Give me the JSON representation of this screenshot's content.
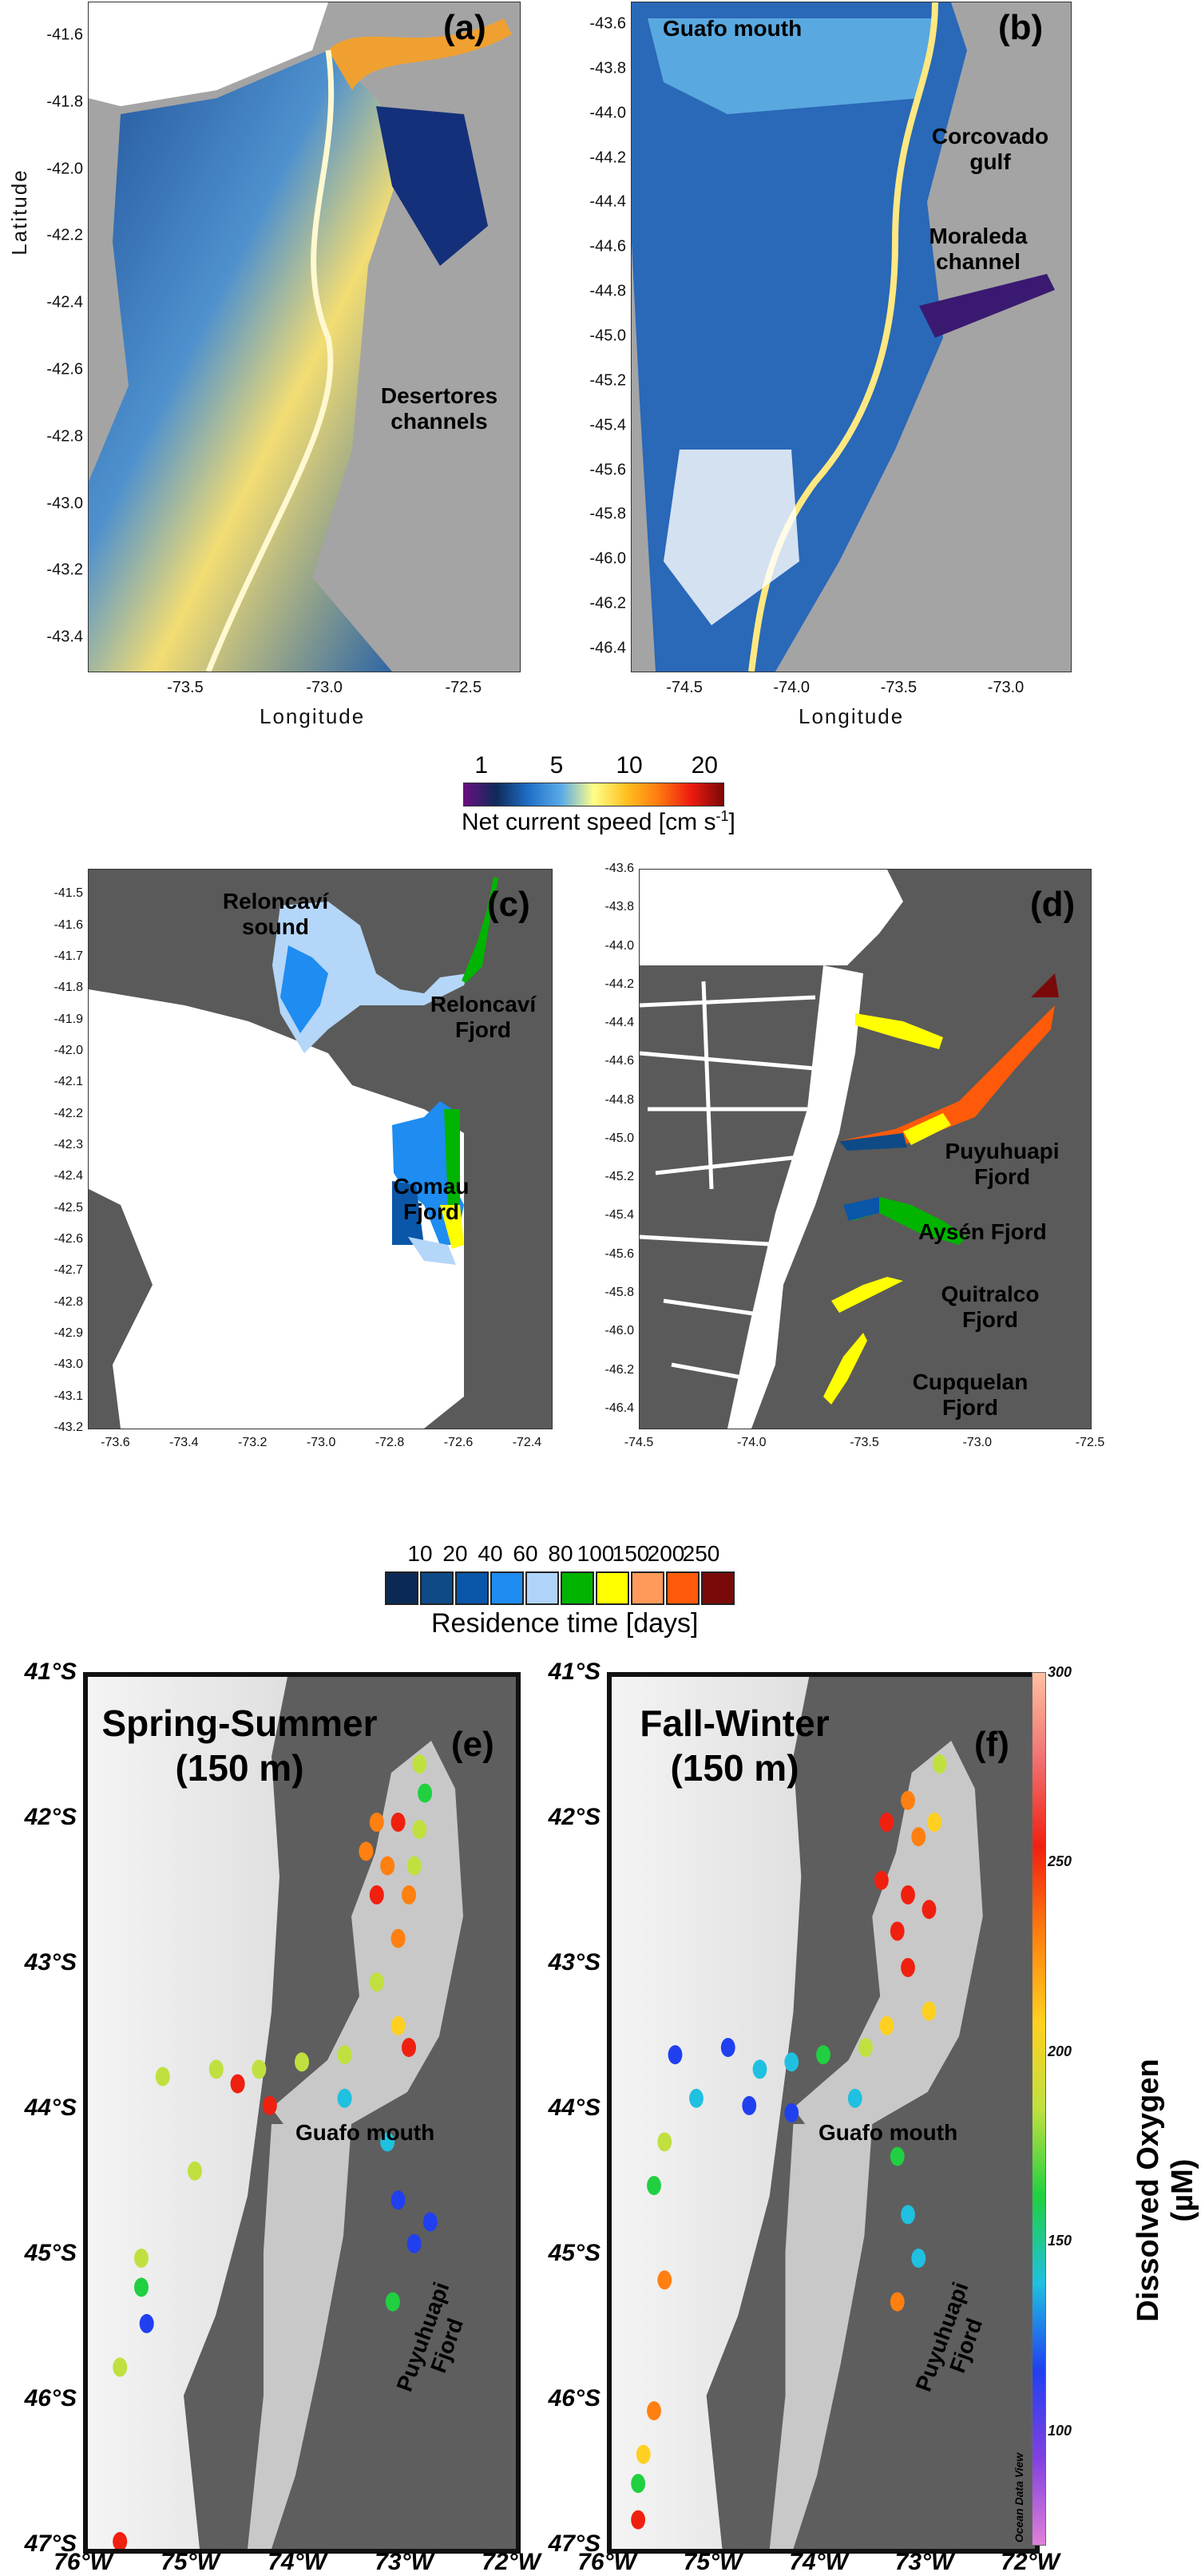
{
  "panel_a": {
    "label": "(a)",
    "xlabel": "Longitude",
    "ylabel": "Latitude",
    "xticks": [
      "-73.5",
      "-73.0",
      "-72.5"
    ],
    "xtick_values": [
      -73.5,
      -73.0,
      -72.5
    ],
    "yticks": [
      "-41.6",
      "-41.8",
      "-42.0",
      "-42.2",
      "-42.4",
      "-42.6",
      "-42.8",
      "-43.0",
      "-43.2",
      "-43.4"
    ],
    "ytick_values": [
      -41.6,
      -41.8,
      -42.0,
      -42.2,
      -42.4,
      -42.6,
      -42.8,
      -43.0,
      -43.2,
      -43.4
    ],
    "xlim": [
      -73.85,
      -72.3
    ],
    "ylim": [
      -43.5,
      -41.5
    ],
    "annotations": [
      "Desertores channels"
    ]
  },
  "panel_b": {
    "label": "(b)",
    "xlabel": "Longitude",
    "xticks": [
      "-74.5",
      "-74.0",
      "-73.5",
      "-73.0"
    ],
    "xtick_values": [
      -74.5,
      -74.0,
      -73.5,
      -73.0
    ],
    "yticks": [
      "-43.6",
      "-43.8",
      "-44.0",
      "-44.2",
      "-44.4",
      "-44.6",
      "-44.8",
      "-45.0",
      "-45.2",
      "-45.4",
      "-45.6",
      "-45.8",
      "-46.0",
      "-46.2",
      "-46.4"
    ],
    "ytick_values": [
      -43.6,
      -43.8,
      -44.0,
      -44.2,
      -44.4,
      -44.6,
      -44.8,
      -45.0,
      -45.2,
      -45.4,
      -45.6,
      -45.8,
      -46.0,
      -46.2,
      -46.4
    ],
    "xlim": [
      -74.75,
      -72.7
    ],
    "ylim": [
      -46.5,
      -43.5
    ],
    "annotations": [
      "Guafo mouth",
      "Corcovado gulf",
      "Moraleda channel"
    ]
  },
  "speed_colorbar": {
    "title": "Net current speed [cm s",
    "title_sup": "-1",
    "title_end": "]",
    "ticks": [
      "1",
      "5",
      "10",
      "20"
    ],
    "colors": [
      "#6a0f80",
      "#0f2a5a",
      "#1f70c8",
      "#5aaae8",
      "#ffff88",
      "#ffc020",
      "#ff7a10",
      "#ee1a10",
      "#7a0808"
    ]
  },
  "panel_c": {
    "label": "(c)",
    "xticks": [
      "-73.6",
      "-73.4",
      "-73.2",
      "-73.0",
      "-72.8",
      "-72.6",
      "-72.4"
    ],
    "xtick_values": [
      -73.6,
      -73.4,
      -73.2,
      -73.0,
      -72.8,
      -72.6,
      -72.4
    ],
    "yticks": [
      "-41.5",
      "-41.6",
      "-41.7",
      "-41.8",
      "-41.9",
      "-42.0",
      "-42.1",
      "-42.2",
      "-42.3",
      "-42.4",
      "-42.5",
      "-42.6",
      "-42.7",
      "-42.8",
      "-42.9",
      "-43.0",
      "-43.1",
      "-43.2"
    ],
    "ytick_values": [
      -41.5,
      -41.6,
      -41.7,
      -41.8,
      -41.9,
      -42.0,
      -42.1,
      -42.2,
      -42.3,
      -42.4,
      -42.5,
      -42.6,
      -42.7,
      -42.8,
      -42.9,
      -43.0,
      -43.1,
      -43.2
    ],
    "xlim": [
      -73.68,
      -72.33
    ],
    "ylim": [
      -43.2,
      -41.42
    ],
    "annotations": [
      "Reloncaví sound",
      "Reloncaví Fjord",
      "Comau Fjord"
    ]
  },
  "panel_d": {
    "label": "(d)",
    "xticks": [
      "-74.5",
      "-74.0",
      "-73.5",
      "-73.0",
      "-72.5"
    ],
    "xtick_values": [
      -74.5,
      -74.0,
      -73.5,
      -73.0,
      -72.5
    ],
    "yticks": [
      "-43.6",
      "-43.8",
      "-44.0",
      "-44.2",
      "-44.4",
      "-44.6",
      "-44.8",
      "-45.0",
      "-45.2",
      "-45.4",
      "-45.6",
      "-45.8",
      "-46.0",
      "-46.2",
      "-46.4"
    ],
    "ytick_values": [
      -43.6,
      -43.8,
      -44.0,
      -44.2,
      -44.4,
      -44.6,
      -44.8,
      -45.0,
      -45.2,
      -45.4,
      -45.6,
      -45.8,
      -46.0,
      -46.2,
      -46.4
    ],
    "xlim": [
      -74.5,
      -72.5
    ],
    "ylim": [
      -46.5,
      -43.6
    ],
    "annotations": [
      "Puyuhuapi Fjord",
      "Aysén Fjord",
      "Quitralco Fjord",
      "Cupquelan Fjord"
    ]
  },
  "residence_legend": {
    "title": "Residence time [days]",
    "ticks": [
      "10",
      "20",
      "40",
      "60",
      "80",
      "100",
      "150",
      "200",
      "250"
    ],
    "colors": [
      "#0a2a55",
      "#0e4a86",
      "#0a56a8",
      "#1e8cf0",
      "#b0d4f8",
      "#00b400",
      "#ffff00",
      "#ff9a5a",
      "#ff5a0a",
      "#7a0a0a"
    ]
  },
  "panel_e": {
    "label": "(e)",
    "title": "Spring-Summer",
    "subtitle": "(150 m)",
    "annotations": [
      "Guafo mouth",
      "Puyuhuapi Fjord"
    ],
    "yticks": [
      "41°S",
      "42°S",
      "43°S",
      "44°S",
      "45°S",
      "46°S",
      "47°S"
    ],
    "ytick_values": [
      -41,
      -42,
      -43,
      -44,
      -45,
      -46,
      -47
    ],
    "xticks": [
      "76°W",
      "75°W",
      "74°W",
      "73°W",
      "72°W"
    ],
    "xtick_values": [
      -76,
      -75,
      -74,
      -73,
      -72
    ],
    "stations": [
      {
        "lon": -72.9,
        "lat": -41.6,
        "o2": 180
      },
      {
        "lon": -72.85,
        "lat": -41.8,
        "o2": 170
      },
      {
        "lon": -72.9,
        "lat": -42.05,
        "o2": 175
      },
      {
        "lon": -73.3,
        "lat": -42.0,
        "o2": 235
      },
      {
        "lon": -73.1,
        "lat": -42.0,
        "o2": 245
      },
      {
        "lon": -73.4,
        "lat": -42.2,
        "o2": 240
      },
      {
        "lon": -73.2,
        "lat": -42.3,
        "o2": 235
      },
      {
        "lon": -72.95,
        "lat": -42.3,
        "o2": 180
      },
      {
        "lon": -73.0,
        "lat": -42.5,
        "o2": 235
      },
      {
        "lon": -73.3,
        "lat": -42.5,
        "o2": 250
      },
      {
        "lon": -73.1,
        "lat": -42.8,
        "o2": 230
      },
      {
        "lon": -73.3,
        "lat": -43.1,
        "o2": 190
      },
      {
        "lon": -73.1,
        "lat": -43.4,
        "o2": 200
      },
      {
        "lon": -73.0,
        "lat": -43.55,
        "o2": 265
      },
      {
        "lon": -73.6,
        "lat": -43.6,
        "o2": 190
      },
      {
        "lon": -74.0,
        "lat": -43.65,
        "o2": 180
      },
      {
        "lon": -74.4,
        "lat": -43.7,
        "o2": 185
      },
      {
        "lon": -74.8,
        "lat": -43.7,
        "o2": 175
      },
      {
        "lon": -75.3,
        "lat": -43.75,
        "o2": 180
      },
      {
        "lon": -74.6,
        "lat": -43.8,
        "o2": 260
      },
      {
        "lon": -74.3,
        "lat": -43.95,
        "o2": 250
      },
      {
        "lon": -73.6,
        "lat": -43.9,
        "o2": 140
      },
      {
        "lon": -73.2,
        "lat": -44.2,
        "o2": 135
      },
      {
        "lon": -73.1,
        "lat": -44.6,
        "o2": 125
      },
      {
        "lon": -72.95,
        "lat": -44.9,
        "o2": 115
      },
      {
        "lon": -72.8,
        "lat": -44.75,
        "o2": 120
      },
      {
        "lon": -73.15,
        "lat": -45.3,
        "o2": 165
      },
      {
        "lon": -75.0,
        "lat": -44.4,
        "o2": 180
      },
      {
        "lon": -75.5,
        "lat": -45.0,
        "o2": 175
      },
      {
        "lon": -75.5,
        "lat": -45.2,
        "o2": 170
      },
      {
        "lon": -75.45,
        "lat": -45.45,
        "o2": 120
      },
      {
        "lon": -75.7,
        "lat": -45.75,
        "o2": 175
      },
      {
        "lon": -75.7,
        "lat": -46.95,
        "o2": 255
      }
    ]
  },
  "panel_f": {
    "label": "(f)",
    "title": "Fall-Winter",
    "subtitle": "(150 m)",
    "annotations": [
      "Guafo mouth",
      "Puyuhuapi Fjord"
    ],
    "yticks": [
      "41°S",
      "42°S",
      "43°S",
      "44°S",
      "45°S",
      "46°S",
      "47°S"
    ],
    "ytick_values": [
      -41,
      -42,
      -43,
      -44,
      -45,
      -46,
      -47
    ],
    "xticks": [
      "76°W",
      "75°W",
      "74°W",
      "73°W",
      "72°W"
    ],
    "xtick_values": [
      -76,
      -75,
      -74,
      -73,
      -72
    ],
    "stations": [
      {
        "lon": -72.9,
        "lat": -41.6,
        "o2": 180
      },
      {
        "lon": -73.2,
        "lat": -41.85,
        "o2": 240
      },
      {
        "lon": -72.95,
        "lat": -42.0,
        "o2": 200
      },
      {
        "lon": -73.4,
        "lat": -42.0,
        "o2": 245
      },
      {
        "lon": -73.1,
        "lat": -42.1,
        "o2": 240
      },
      {
        "lon": -73.45,
        "lat": -42.4,
        "o2": 265
      },
      {
        "lon": -73.2,
        "lat": -42.5,
        "o2": 245
      },
      {
        "lon": -73.0,
        "lat": -42.6,
        "o2": 250
      },
      {
        "lon": -73.3,
        "lat": -42.75,
        "o2": 255
      },
      {
        "lon": -73.2,
        "lat": -43.0,
        "o2": 245
      },
      {
        "lon": -73.0,
        "lat": -43.3,
        "o2": 205
      },
      {
        "lon": -73.4,
        "lat": -43.4,
        "o2": 210
      },
      {
        "lon": -73.6,
        "lat": -43.55,
        "o2": 180
      },
      {
        "lon": -74.0,
        "lat": -43.6,
        "o2": 160
      },
      {
        "lon": -74.3,
        "lat": -43.65,
        "o2": 140
      },
      {
        "lon": -74.6,
        "lat": -43.7,
        "o2": 150
      },
      {
        "lon": -74.9,
        "lat": -43.55,
        "o2": 120
      },
      {
        "lon": -75.4,
        "lat": -43.6,
        "o2": 115
      },
      {
        "lon": -75.2,
        "lat": -43.9,
        "o2": 130
      },
      {
        "lon": -74.7,
        "lat": -43.95,
        "o2": 110
      },
      {
        "lon": -74.3,
        "lat": -44.0,
        "o2": 115
      },
      {
        "lon": -73.7,
        "lat": -43.9,
        "o2": 140
      },
      {
        "lon": -73.3,
        "lat": -44.3,
        "o2": 155
      },
      {
        "lon": -73.2,
        "lat": -44.7,
        "o2": 150
      },
      {
        "lon": -73.1,
        "lat": -45.0,
        "o2": 140
      },
      {
        "lon": -73.3,
        "lat": -45.3,
        "o2": 230
      },
      {
        "lon": -75.5,
        "lat": -44.2,
        "o2": 175
      },
      {
        "lon": -75.6,
        "lat": -44.5,
        "o2": 170
      },
      {
        "lon": -75.5,
        "lat": -45.15,
        "o2": 240
      },
      {
        "lon": -75.6,
        "lat": -46.05,
        "o2": 230
      },
      {
        "lon": -75.7,
        "lat": -46.35,
        "o2": 200
      },
      {
        "lon": -75.75,
        "lat": -46.55,
        "o2": 160
      },
      {
        "lon": -75.75,
        "lat": -46.8,
        "o2": 255
      }
    ]
  },
  "oxygen_colorbar": {
    "title": "Dissolved Oxygen (µM)",
    "ticks": [
      "300",
      "250",
      "200",
      "150",
      "100"
    ],
    "tick_values": [
      300,
      250,
      200,
      150,
      100
    ],
    "range": [
      70,
      300
    ],
    "watermark": "Ocean Data View",
    "colors": [
      "#e080d8",
      "#8040e0",
      "#2040f0",
      "#20c0e0",
      "#20d040",
      "#c0e040",
      "#ffd020",
      "#ff8010",
      "#f02010",
      "#f07070",
      "#ffc0a0"
    ]
  }
}
